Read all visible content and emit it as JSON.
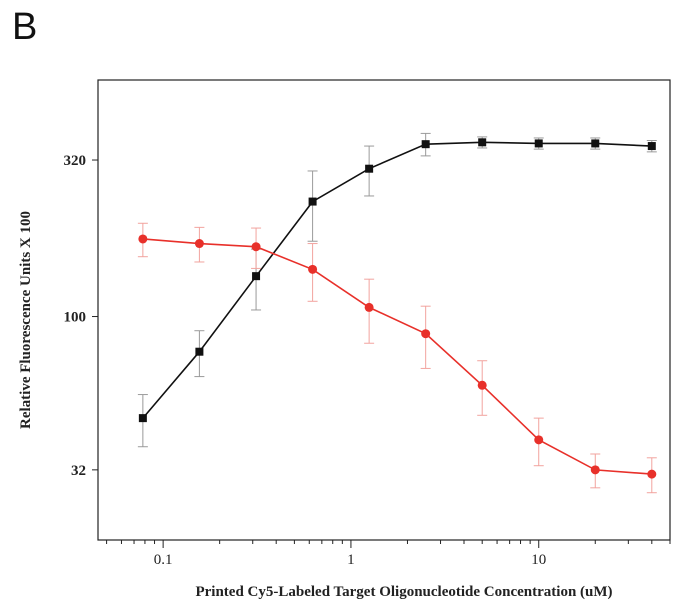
{
  "panel_label": "B",
  "chart_data": {
    "type": "line",
    "title": "",
    "xlabel": "Printed Cy5-Labeled Target Oligonucleotide Concentration (uM)",
    "ylabel": "Relative Fluorescence Units X 100",
    "xscale": "log",
    "yscale": "log",
    "xlim": [
      0.045,
      50
    ],
    "ylim": [
      19,
      580
    ],
    "xticks": [
      0.1,
      1,
      10
    ],
    "xtick_labels": [
      "0.1",
      "1",
      "10"
    ],
    "yticks": [
      32,
      100,
      320
    ],
    "ytick_labels": [
      "32",
      "100",
      "320"
    ],
    "x": [
      0.078,
      0.156,
      0.3125,
      0.625,
      1.25,
      2.5,
      5,
      10,
      20,
      40
    ],
    "grid": false,
    "legend": "none",
    "series": [
      {
        "color": "#111111",
        "marker": "square",
        "values": [
          47,
          77,
          135,
          235,
          300,
          360,
          365,
          362,
          362,
          355
        ],
        "err": [
          9,
          13,
          30,
          60,
          55,
          30,
          15,
          15,
          15,
          15
        ]
      },
      {
        "color": "#e8302a",
        "marker": "circle",
        "values": [
          178,
          172,
          168,
          142,
          107,
          88,
          60,
          40,
          32,
          31
        ],
        "err": [
          22,
          22,
          25,
          30,
          25,
          20,
          12,
          7,
          4,
          4
        ]
      }
    ]
  }
}
